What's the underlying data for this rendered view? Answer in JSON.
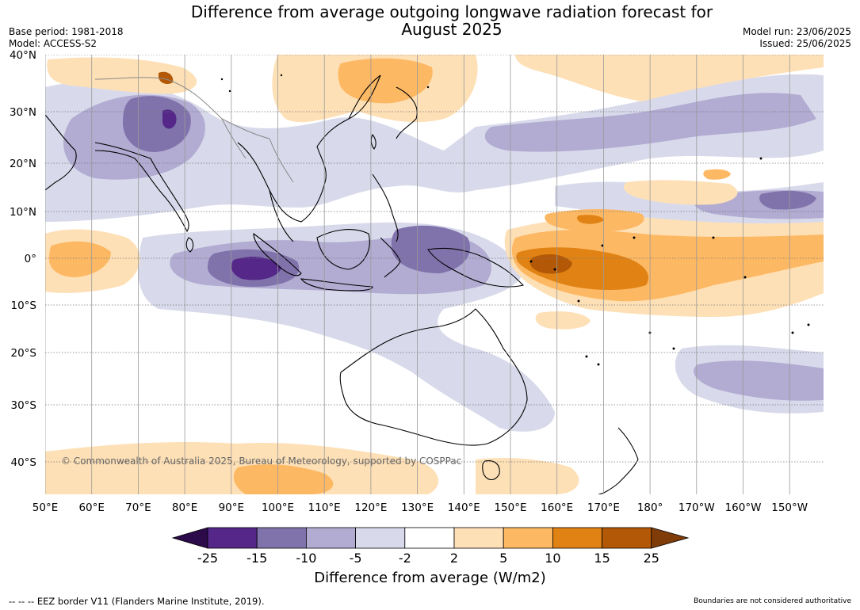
{
  "title": "Difference from average outgoing longwave radiation forecast for\nAugust 2025",
  "meta_left": {
    "base_period": "Base period: 1981-2018",
    "model": "Model: ACCESS-S2"
  },
  "meta_right": {
    "model_run": "Model run: 23/06/2025",
    "issued": "Issued: 25/06/2025"
  },
  "map": {
    "region": "Indo-Pacific",
    "lat_labels": [
      "40°N",
      "30°N",
      "20°N",
      "10°N",
      "0°",
      "10°S",
      "20°S",
      "30°S",
      "40°S"
    ],
    "lon_labels": [
      "50°E",
      "60°E",
      "70°E",
      "80°E",
      "90°E",
      "100°E",
      "110°E",
      "120°E",
      "130°E",
      "140°E",
      "150°E",
      "160°E",
      "170°E",
      "180°",
      "170°W",
      "160°W",
      "150°W"
    ],
    "copyright": "© Commonwealth of Australia 2025, Bureau of Meteorology, supported by COSPPac",
    "gridlines": true
  },
  "colorbar": {
    "label": "Difference from average (W/m2)",
    "ticks": [
      "-25",
      "-15",
      "-10",
      "-5",
      "-2",
      "2",
      "5",
      "10",
      "15",
      "25"
    ],
    "colors": {
      "under": "#2d0a4a",
      "c1": "#542788",
      "c2": "#8073ac",
      "c3": "#b2abd2",
      "c4": "#d8daeb",
      "c5": "#ffffff",
      "c6": "#fee0b6",
      "c7": "#fdb863",
      "c8": "#e08214",
      "c9": "#b35806",
      "over": "#7f3b08"
    }
  },
  "footer_left": "--  --  -- EEZ border V11 (Flanders Marine Institute, 2019).",
  "footer_right": "Boundaries are not considered authoritative"
}
